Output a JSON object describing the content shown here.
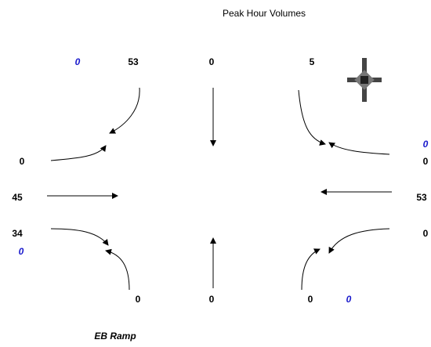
{
  "title": "Peak Hour Volumes",
  "top": [
    0,
    53,
    0,
    5
  ],
  "left": [
    0,
    45,
    34,
    0
  ],
  "right": [
    0,
    0,
    53,
    0
  ],
  "bottom": [
    0,
    0,
    0,
    0
  ],
  "footer": "EB Ramp"
}
